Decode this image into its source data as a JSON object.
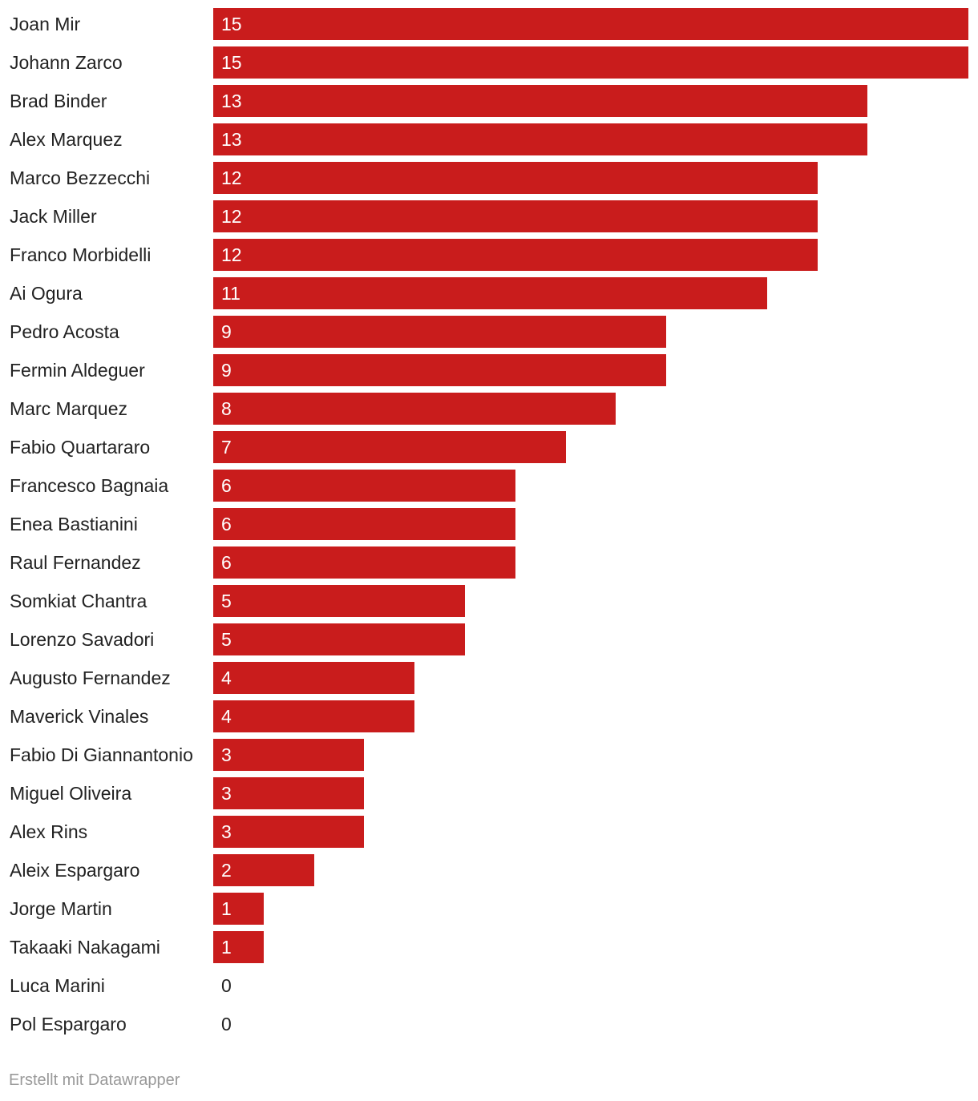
{
  "chart_data": {
    "type": "bar",
    "orientation": "horizontal",
    "categories": [
      "Joan Mir",
      "Johann Zarco",
      "Brad Binder",
      "Alex Marquez",
      "Marco Bezzecchi",
      "Jack Miller",
      "Franco Morbidelli",
      "Ai Ogura",
      "Pedro Acosta",
      "Fermin Aldeguer",
      "Marc Marquez",
      "Fabio Quartararo",
      "Francesco Bagnaia",
      "Enea Bastianini",
      "Raul Fernandez",
      "Somkiat Chantra",
      "Lorenzo Savadori",
      "Augusto Fernandez",
      "Maverick Vinales",
      "Fabio Di Giannantonio",
      "Miguel Oliveira",
      "Alex Rins",
      "Aleix Espargaro",
      "Jorge Martin",
      "Takaaki Nakagami",
      "Luca Marini",
      "Pol Espargaro"
    ],
    "values": [
      15,
      15,
      13,
      13,
      12,
      12,
      12,
      11,
      9,
      9,
      8,
      7,
      6,
      6,
      6,
      5,
      5,
      4,
      4,
      3,
      3,
      3,
      2,
      1,
      1,
      0,
      0
    ],
    "xlim": [
      0,
      15
    ],
    "data_labels": "inside-start",
    "title": "",
    "xlabel": "",
    "ylabel": "",
    "grid": false
  },
  "colors": {
    "bar": "#c91c1c",
    "label_inside": "#ffffff",
    "label_outside": "#222222",
    "footer": "#999999"
  },
  "footer": {
    "credit": "Erstellt mit Datawrapper"
  }
}
